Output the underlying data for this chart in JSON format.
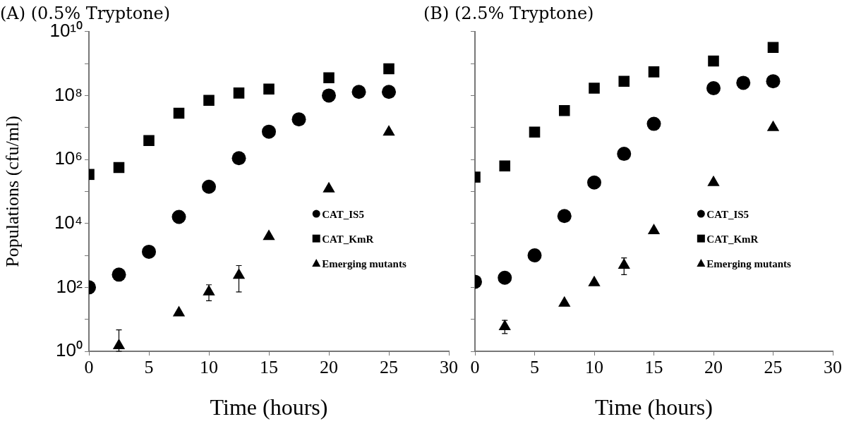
{
  "chart_data": [
    {
      "type": "scatter",
      "title": "(A) (0.5% Tryptone)",
      "xlabel": "Time (hours)",
      "ylabel": "Populations (cfu/ml)",
      "log": "y",
      "grid": false,
      "legend": "right",
      "xlim": [
        0,
        30
      ],
      "xticks": [
        0,
        5,
        10,
        15,
        20,
        25,
        30
      ],
      "ylim": [
        1,
        10000000000
      ],
      "yticks": [
        {
          "value": 1,
          "label": "10⁰"
        },
        {
          "value": 10,
          "label": null
        },
        {
          "value": 100,
          "label": "10²"
        },
        {
          "value": 1000,
          "label": null
        },
        {
          "value": 10000,
          "label": "10⁴"
        },
        {
          "value": 100000,
          "label": null
        },
        {
          "value": 1000000,
          "label": "10⁶"
        },
        {
          "value": 10000000,
          "label": null
        },
        {
          "value": 100000000,
          "label": "10⁸"
        },
        {
          "value": 1000000000,
          "label": null
        },
        {
          "value": 10000000000,
          "label": "10¹⁰"
        }
      ],
      "series": [
        {
          "name": "CAT_IS5",
          "color": "#000000",
          "marker": "circle",
          "x": [
            0,
            2.5,
            5,
            7.5,
            10,
            12.5,
            15,
            17.5,
            20,
            22.5,
            25
          ],
          "values": [
            100,
            250,
            1300,
            16000,
            140000,
            1100000,
            7400000,
            18000000,
            100000000,
            130000000,
            130000000
          ]
        },
        {
          "name": "CAT_KmR",
          "color": "#000000",
          "marker": "square",
          "x": [
            0,
            2.5,
            5,
            7.5,
            10,
            12.5,
            15,
            20,
            25
          ],
          "values": [
            340000,
            560000,
            3900000,
            28000000,
            71000000,
            120000000,
            160000000,
            360000000,
            690000000
          ]
        },
        {
          "name": "Emerging mutants",
          "color": "#000000",
          "marker": "triangle",
          "x": [
            2.5,
            7.5,
            10,
            12.5,
            15,
            20,
            25
          ],
          "values": [
            1.5,
            16,
            72,
            240,
            3900,
            120000,
            7200000
          ],
          "errors": [
            [
              1,
              4.7
            ],
            null,
            [
              38,
              120
            ],
            [
              72,
              480
            ],
            null,
            null,
            null
          ]
        }
      ]
    },
    {
      "type": "scatter",
      "title": "(B) (2.5% Tryptone)",
      "xlabel": "Time (hours)",
      "log": "y",
      "grid": false,
      "legend": "right",
      "tick_labels": "x",
      "xlim": [
        0,
        30
      ],
      "xticks": [
        0,
        5,
        10,
        15,
        20,
        25,
        30
      ],
      "ylim": [
        1,
        10000000000
      ],
      "yticks": [
        {
          "value": 1,
          "label": null
        },
        {
          "value": 10,
          "label": null
        },
        {
          "value": 100,
          "label": null
        },
        {
          "value": 1000,
          "label": null
        },
        {
          "value": 10000,
          "label": null
        },
        {
          "value": 100000,
          "label": null
        },
        {
          "value": 1000000,
          "label": null
        },
        {
          "value": 10000000,
          "label": null
        },
        {
          "value": 100000000,
          "label": null
        },
        {
          "value": 1000000000,
          "label": null
        },
        {
          "value": 10000000000,
          "label": null
        }
      ],
      "series": [
        {
          "name": "CAT_IS5",
          "color": "#000000",
          "marker": "circle",
          "x": [
            0,
            2.5,
            5,
            7.5,
            10,
            12.5,
            15,
            20,
            22.5,
            25
          ],
          "values": [
            150,
            200,
            1000,
            17000,
            190000,
            1500000,
            13000000,
            170000000,
            250000000,
            280000000
          ]
        },
        {
          "name": "CAT_KmR",
          "color": "#000000",
          "marker": "square",
          "x": [
            0,
            2.5,
            5,
            7.5,
            10,
            12.5,
            15,
            20,
            25
          ],
          "values": [
            280000,
            630000,
            7200000,
            34000000,
            170000000,
            280000000,
            550000000,
            1200000000,
            3200000000
          ]
        },
        {
          "name": "Emerging mutants",
          "color": "#000000",
          "marker": "triangle",
          "x": [
            2.5,
            7.5,
            10,
            12.5,
            15,
            20,
            25
          ],
          "values": [
            5.9,
            32,
            140,
            490,
            5900,
            190000,
            10000000
          ],
          "errors": [
            [
              3.6,
              9.3
            ],
            null,
            null,
            [
              250,
              830
            ],
            null,
            null,
            null
          ]
        }
      ]
    }
  ]
}
